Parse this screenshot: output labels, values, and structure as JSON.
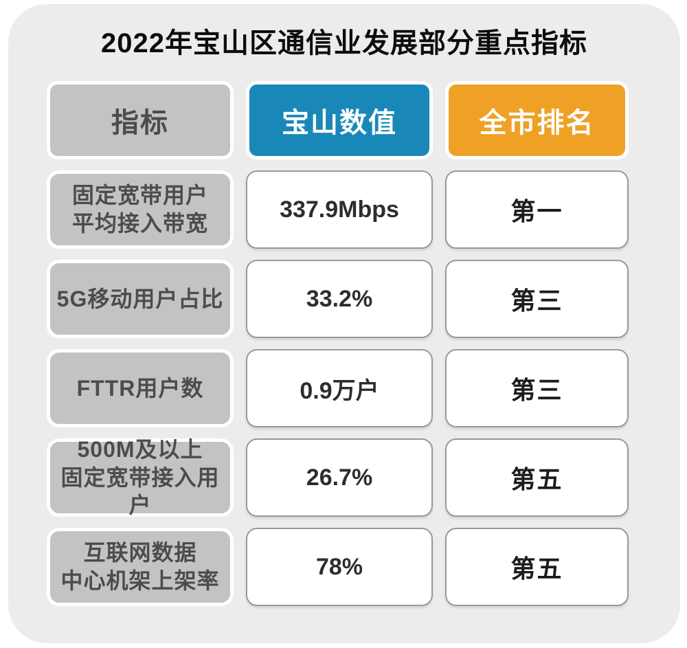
{
  "title": "2022年宝山区通信业发展部分重点指标",
  "colors": {
    "card_background": "#ececec",
    "page_background": "#ffffff",
    "indicator_cell": "#c3c3c3",
    "indicator_text": "#4c4c4c",
    "baoshan_header": "#1988b8",
    "rank_header": "#eea125",
    "header_text": "#ffffff",
    "value_cell_border": "#999999",
    "value_text": "#2d2d2d"
  },
  "table": {
    "headers": {
      "indicator": "指标",
      "baoshan_value": "宝山数值",
      "city_rank": "全市排名"
    },
    "rows": [
      {
        "indicator": "固定宽带用户\n平均接入带宽",
        "value": "337.9Mbps",
        "rank": "第一"
      },
      {
        "indicator": "5G移动用户占比",
        "value": "33.2%",
        "rank": "第三"
      },
      {
        "indicator": "FTTR用户数",
        "value": "0.9万户",
        "rank": "第三"
      },
      {
        "indicator": "500M及以上\n固定宽带接入用户",
        "value": "26.7%",
        "rank": "第五"
      },
      {
        "indicator": "互联网数据\n中心机架上架率",
        "value": "78%",
        "rank": "第五"
      }
    ]
  },
  "chart_data": {
    "type": "table",
    "title": "2022年宝山区通信业发展部分重点指标",
    "columns": [
      "指标",
      "宝山数值",
      "全市排名"
    ],
    "rows": [
      [
        "固定宽带用户平均接入带宽",
        "337.9Mbps",
        "第一"
      ],
      [
        "5G移动用户占比",
        "33.2%",
        "第三"
      ],
      [
        "FTTR用户数",
        "0.9万户",
        "第三"
      ],
      [
        "500M及以上固定宽带接入用户",
        "26.7%",
        "第五"
      ],
      [
        "互联网数据中心机架上架率",
        "78%",
        "第五"
      ]
    ]
  }
}
